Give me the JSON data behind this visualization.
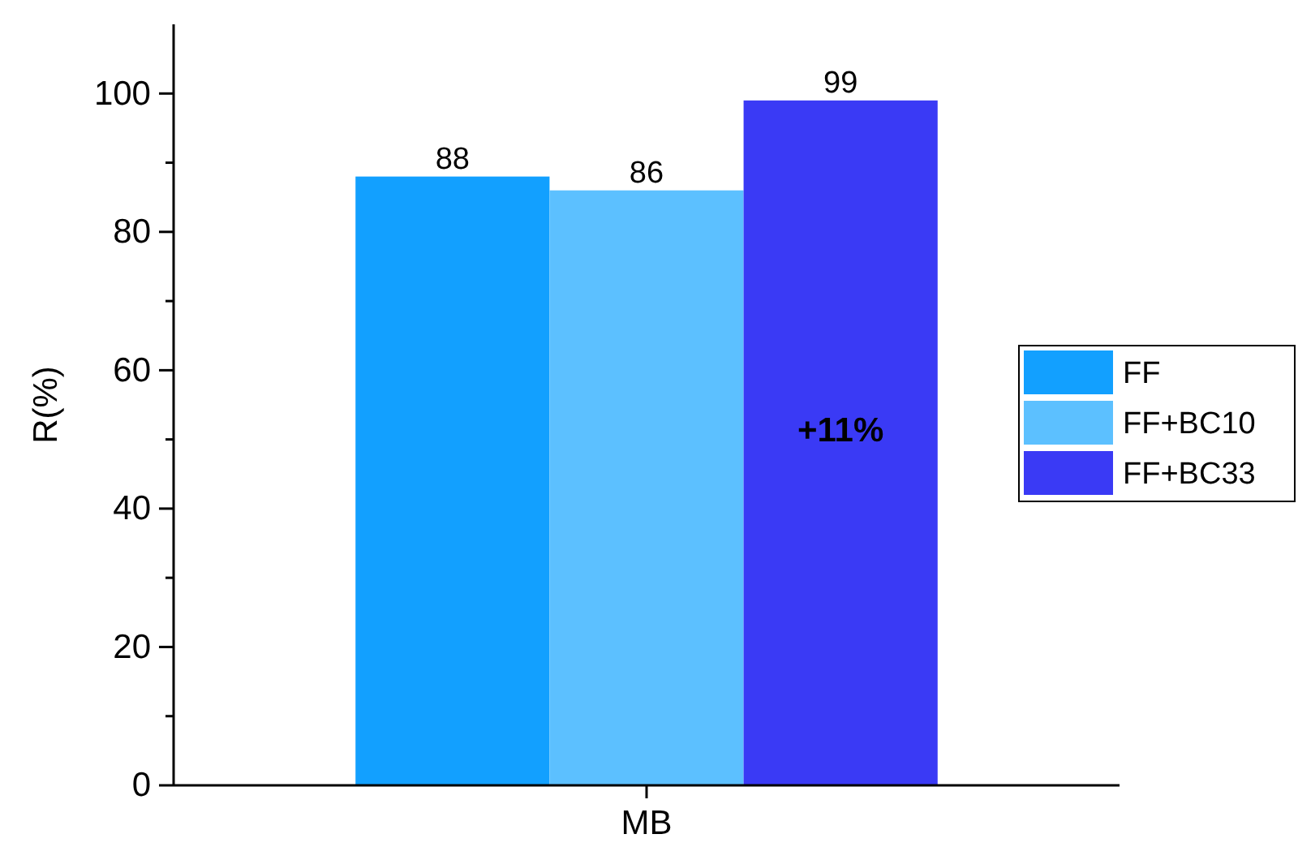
{
  "chart_data": {
    "type": "bar",
    "ylabel": "R(%)",
    "categories": [
      "MB"
    ],
    "series": [
      {
        "name": "FF",
        "color": "#12a0ff",
        "values": [
          88
        ]
      },
      {
        "name": "FF+BC10",
        "color": "#5cc0ff",
        "values": [
          86
        ]
      },
      {
        "name": "FF+BC33",
        "color": "#3a3af5",
        "values": [
          99
        ]
      }
    ],
    "ylim": [
      0,
      110
    ],
    "yticks": [
      0,
      {
        "value": 10,
        "label": null
      },
      20,
      {
        "value": 30,
        "label": null
      },
      40,
      {
        "value": 50,
        "label": null
      },
      60,
      {
        "value": 70,
        "label": null
      },
      80,
      {
        "value": 90,
        "label": null
      },
      100
    ],
    "data_labels": true,
    "legend": "right",
    "grid": false,
    "annotations": [
      "+11%"
    ]
  }
}
